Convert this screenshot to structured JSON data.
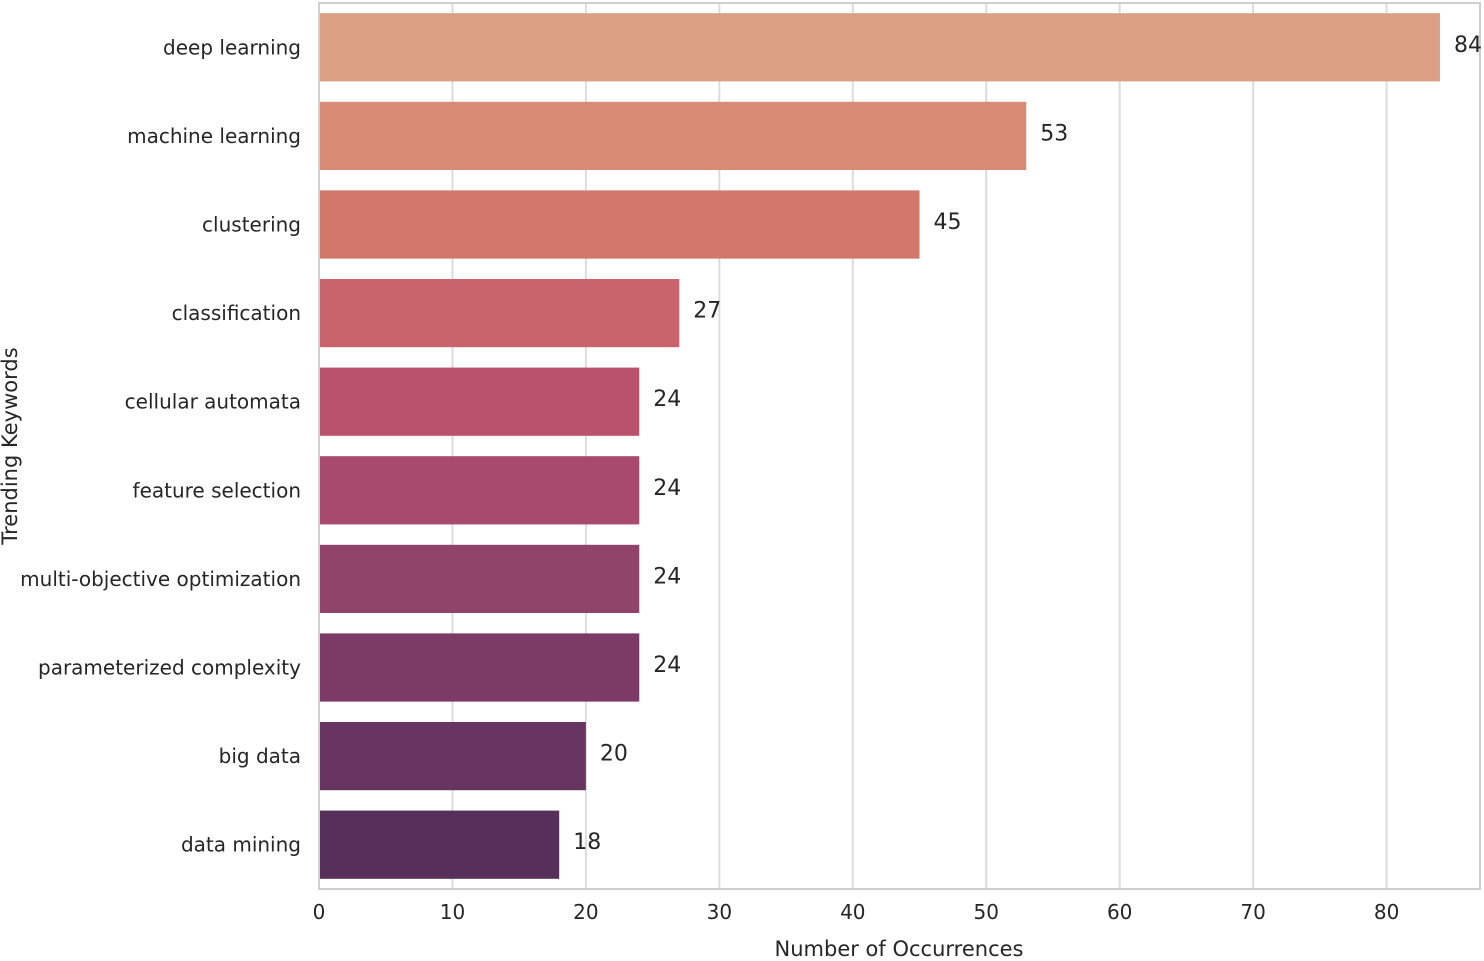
{
  "chart_data": {
    "type": "bar",
    "orientation": "horizontal",
    "title": "",
    "xlabel": "Number of Occurrences",
    "ylabel": "Trending Keywords",
    "xlim": [
      0,
      87
    ],
    "xticks": [
      0,
      10,
      20,
      30,
      40,
      50,
      60,
      70,
      80
    ],
    "grid": "vertical",
    "legend": "none",
    "categories": [
      "deep learning",
      "machine learning",
      "clustering",
      "classification",
      "cellular automata",
      "feature selection",
      "multi-objective optimization",
      "parameterized complexity",
      "big data",
      "data mining"
    ],
    "values": [
      84,
      53,
      45,
      27,
      24,
      24,
      24,
      24,
      20,
      18
    ],
    "colors": [
      "#dba083",
      "#d98b75",
      "#d1776b",
      "#c9636c",
      "#ba526b",
      "#a74a6c",
      "#91446a",
      "#7c3a67",
      "#683462",
      "#562f5a"
    ]
  }
}
